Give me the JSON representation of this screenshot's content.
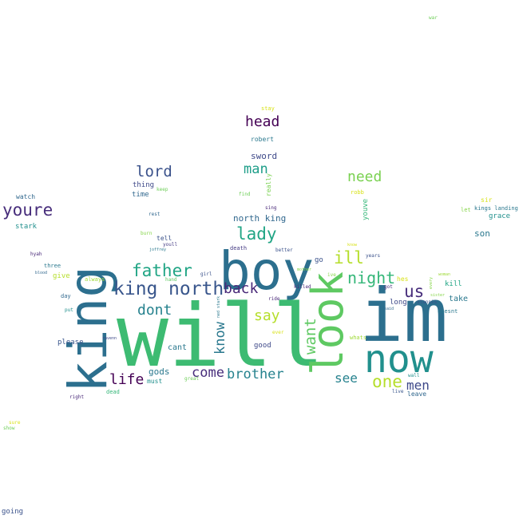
{
  "words": [
    {
      "text": "will",
      "color": "#3dbb72",
      "orientation": "h"
    },
    {
      "text": "im",
      "color": "#2c6f8e",
      "orientation": "h"
    },
    {
      "text": "boy",
      "color": "#2c6f8e",
      "orientation": "h"
    },
    {
      "text": "king",
      "color": "#2c6f8e",
      "orientation": "v"
    },
    {
      "text": "look",
      "color": "#5ec962",
      "orientation": "v"
    },
    {
      "text": "now",
      "color": "#21908d",
      "orientation": "h"
    },
    {
      "text": "north",
      "color": "#39568c",
      "orientation": "h"
    },
    {
      "text": "king",
      "color": "#39568c",
      "orientation": "h"
    },
    {
      "text": "father",
      "color": "#21a585",
      "orientation": "h"
    },
    {
      "text": "youre",
      "color": "#472d7b",
      "orientation": "h"
    },
    {
      "text": "lady",
      "color": "#21a585",
      "orientation": "h"
    },
    {
      "text": "head",
      "color": "#440154",
      "orientation": "h"
    },
    {
      "text": "lord",
      "color": "#3b528b",
      "orientation": "h"
    },
    {
      "text": "man",
      "color": "#1f9e89",
      "orientation": "h"
    },
    {
      "text": "need",
      "color": "#7ad151",
      "orientation": "h"
    },
    {
      "text": "ill",
      "color": "#b5de2b",
      "orientation": "h"
    },
    {
      "text": "night",
      "color": "#35b779",
      "orientation": "h"
    },
    {
      "text": "us",
      "color": "#472d7b",
      "orientation": "h"
    },
    {
      "text": "dont",
      "color": "#26828e",
      "orientation": "h"
    },
    {
      "text": "back",
      "color": "#482878",
      "orientation": "h"
    },
    {
      "text": "say",
      "color": "#b5de2b",
      "orientation": "h"
    },
    {
      "text": "want",
      "color": "#5ec962",
      "orientation": "v"
    },
    {
      "text": "know",
      "color": "#2a788e",
      "orientation": "v"
    },
    {
      "text": "life",
      "color": "#440154",
      "orientation": "h"
    },
    {
      "text": "come",
      "color": "#472d7b",
      "orientation": "h"
    },
    {
      "text": "brother",
      "color": "#26828e",
      "orientation": "h"
    },
    {
      "text": "one",
      "color": "#b5de2b",
      "orientation": "h"
    },
    {
      "text": "men",
      "color": "#3e4989",
      "orientation": "h"
    },
    {
      "text": "see",
      "color": "#26828e",
      "orientation": "h"
    },
    {
      "text": "sword",
      "color": "#3e4989",
      "orientation": "h"
    },
    {
      "text": "north king",
      "color": "#31688e",
      "orientation": "h"
    },
    {
      "text": "robert",
      "color": "#2a788e",
      "orientation": "h"
    },
    {
      "text": "stay",
      "color": "#d8e219",
      "orientation": "h"
    },
    {
      "text": "thing",
      "color": "#3e4989",
      "orientation": "h"
    },
    {
      "text": "time",
      "color": "#31688e",
      "orientation": "h"
    },
    {
      "text": "keep",
      "color": "#6ece58",
      "orientation": "h"
    },
    {
      "text": "find",
      "color": "#6ece58",
      "orientation": "h"
    },
    {
      "text": "really",
      "color": "#7ad151",
      "orientation": "v"
    },
    {
      "text": "sing",
      "color": "#482878",
      "orientation": "h"
    },
    {
      "text": "robb",
      "color": "#d8e219",
      "orientation": "h"
    },
    {
      "text": "youve",
      "color": "#35b779",
      "orientation": "v"
    },
    {
      "text": "sir",
      "color": "#d8e219",
      "orientation": "h"
    },
    {
      "text": "let",
      "color": "#86d549",
      "orientation": "h"
    },
    {
      "text": "kings landing",
      "color": "#2a788e",
      "orientation": "h"
    },
    {
      "text": "grace",
      "color": "#21908d",
      "orientation": "h"
    },
    {
      "text": "son",
      "color": "#2a788e",
      "orientation": "h"
    },
    {
      "text": "watch",
      "color": "#31688e",
      "orientation": "h"
    },
    {
      "text": "stark",
      "color": "#21908d",
      "orientation": "h"
    },
    {
      "text": "rest",
      "color": "#31688e",
      "orientation": "h"
    },
    {
      "text": "burn",
      "color": "#86d549",
      "orientation": "h"
    },
    {
      "text": "tell",
      "color": "#3b528b",
      "orientation": "h"
    },
    {
      "text": "youll",
      "color": "#443a83",
      "orientation": "h"
    },
    {
      "text": "joffrey",
      "color": "#2a788e",
      "orientation": "h"
    },
    {
      "text": "death",
      "color": "#443a83",
      "orientation": "h"
    },
    {
      "text": "better",
      "color": "#3b528b",
      "orientation": "h"
    },
    {
      "text": "know",
      "color": "#d8e219",
      "orientation": "h"
    },
    {
      "text": "years",
      "color": "#3b528b",
      "orientation": "h"
    },
    {
      "text": "hyah",
      "color": "#482878",
      "orientation": "h"
    },
    {
      "text": "three",
      "color": "#2a788e",
      "orientation": "h"
    },
    {
      "text": "blood",
      "color": "#31688e",
      "orientation": "h"
    },
    {
      "text": "give",
      "color": "#b5de2b",
      "orientation": "h"
    },
    {
      "text": "always",
      "color": "#a0da39",
      "orientation": "h"
    },
    {
      "text": "hand",
      "color": "#5ec962",
      "orientation": "h"
    },
    {
      "text": "girl",
      "color": "#3b528b",
      "orientation": "h"
    },
    {
      "text": "go",
      "color": "#3b528b",
      "orientation": "h"
    },
    {
      "text": "ive",
      "color": "#86d549",
      "orientation": "h"
    },
    {
      "text": "mother",
      "color": "#86d549",
      "orientation": "h"
    },
    {
      "text": "killed",
      "color": "#482878",
      "orientation": "h"
    },
    {
      "text": "hes",
      "color": "#d8e219",
      "orientation": "h"
    },
    {
      "text": "got",
      "color": "#472d7b",
      "orientation": "h"
    },
    {
      "text": "said",
      "color": "#31688e",
      "orientation": "h"
    },
    {
      "text": "woman",
      "color": "#a0da39",
      "orientation": "h"
    },
    {
      "text": "kill",
      "color": "#21a585",
      "orientation": "h"
    },
    {
      "text": "every",
      "color": "#86d549",
      "orientation": "v"
    },
    {
      "text": "sister",
      "color": "#86d549",
      "orientation": "h"
    },
    {
      "text": "stannis",
      "color": "#3b528b",
      "orientation": "h"
    },
    {
      "text": "day",
      "color": "#31688e",
      "orientation": "h"
    },
    {
      "text": "put",
      "color": "#21908d",
      "orientation": "h"
    },
    {
      "text": "ride",
      "color": "#482878",
      "orientation": "h"
    },
    {
      "text": "long",
      "color": "#3e4989",
      "orientation": "h"
    },
    {
      "text": "take",
      "color": "#2a788e",
      "orientation": "h"
    },
    {
      "text": "doesnt",
      "color": "#2a788e",
      "orientation": "h"
    },
    {
      "text": "please",
      "color": "#39568c",
      "orientation": "h"
    },
    {
      "text": "cant",
      "color": "#2a788e",
      "orientation": "h"
    },
    {
      "text": "gods",
      "color": "#2a788e",
      "orientation": "h"
    },
    {
      "text": "must",
      "color": "#21908d",
      "orientation": "h"
    },
    {
      "text": "great",
      "color": "#6ece58",
      "orientation": "h"
    },
    {
      "text": "good",
      "color": "#3e4989",
      "orientation": "h"
    },
    {
      "text": "ever",
      "color": "#d8e219",
      "orientation": "h"
    },
    {
      "text": "whats",
      "color": "#a0da39",
      "orientation": "h"
    },
    {
      "text": "wall",
      "color": "#21908d",
      "orientation": "h"
    },
    {
      "text": "ned stark",
      "color": "#2a788e",
      "orientation": "v"
    },
    {
      "text": "ravenn",
      "color": "#3e4989",
      "orientation": "h"
    },
    {
      "text": "live",
      "color": "#39568c",
      "orientation": "h"
    },
    {
      "text": "leave",
      "color": "#31688e",
      "orientation": "h"
    },
    {
      "text": "right",
      "color": "#482878",
      "orientation": "h"
    },
    {
      "text": "dead",
      "color": "#35b779",
      "orientation": "h"
    },
    {
      "text": "war",
      "color": "#6ece58",
      "orientation": "h"
    },
    {
      "text": "sure",
      "color": "#d8e219",
      "orientation": "h"
    },
    {
      "text": "show",
      "color": "#6ece58",
      "orientation": "h"
    },
    {
      "text": "going",
      "color": "#3b528b",
      "orientation": "h"
    }
  ]
}
